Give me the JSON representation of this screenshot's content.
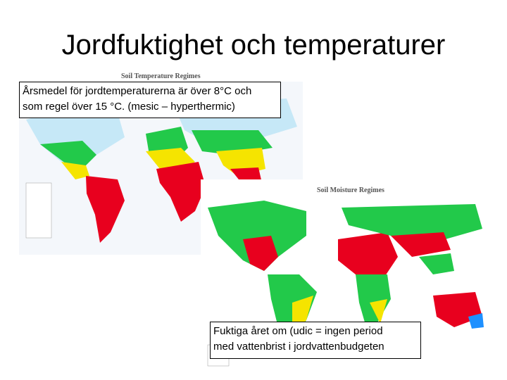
{
  "slide": {
    "title": "Jordfuktighet och temperaturer",
    "maps": [
      {
        "title": "Soil Temperature Regimes",
        "caption": [
          "Årsmedel för jordtemperaturerna är över 8°C och",
          "som regel över 15 °C. (mesic – hyperthermic)"
        ]
      },
      {
        "title": "Soil Moisture Regimes",
        "caption": [
          "Fuktiga året om (udic = ingen period",
          "med vattenbrist i jordvattenbudgeten"
        ]
      }
    ]
  }
}
